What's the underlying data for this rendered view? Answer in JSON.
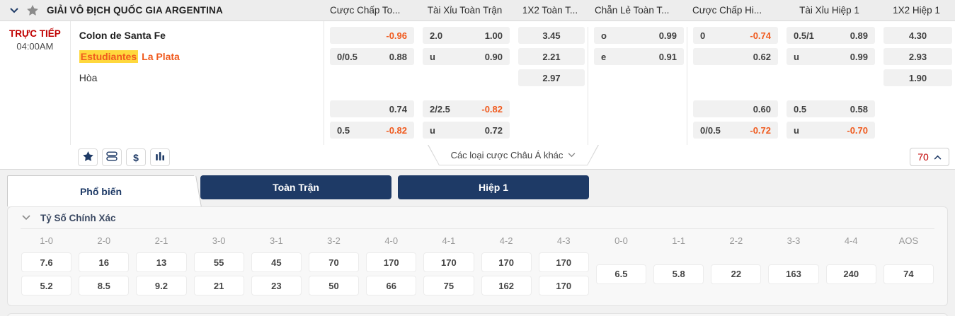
{
  "colors": {
    "accent_orange": "#f05a1e",
    "navy": "#1e3a66",
    "live_red": "#c00000",
    "highlight_yellow": "#ffd83d",
    "cell_gray": "#f1f1f1"
  },
  "league_bar": {
    "title": "GIẢI VÔ ĐỊCH QUỐC GIA ARGENTINA",
    "column_headers": [
      "Cược Chấp To...",
      "Tài Xỉu Toàn Trận",
      "1X2 Toàn T...",
      "Chẵn Lẻ Toàn T...",
      "Cược Chấp Hi...",
      "Tài Xỉu Hiệp 1",
      "1X2 Hiệp 1"
    ]
  },
  "match": {
    "live_label": "TRỰC TIẾP",
    "time": "04:00AM",
    "home_team": "Colon de Santa Fe",
    "away_team_highlighted": "Estudiantes",
    "away_team_rest": "La Plata",
    "draw_label": "Hòa"
  },
  "odds": {
    "ft_handicap": {
      "b1": [
        {
          "line": "",
          "value": "-0.96"
        },
        {
          "line": "0/0.5",
          "value": "0.88"
        }
      ],
      "b2": [
        {
          "line": "",
          "value": "0.74"
        },
        {
          "line": "0.5",
          "value": "-0.82"
        }
      ]
    },
    "ft_ou": {
      "b1": [
        {
          "line": "2.0",
          "value": "1.00"
        },
        {
          "line": "u",
          "value": "0.90"
        }
      ],
      "b2": [
        {
          "line": "2/2.5",
          "value": "-0.82"
        },
        {
          "line": "u",
          "value": "0.72"
        }
      ]
    },
    "ft_1x2": [
      "3.45",
      "2.21",
      "2.97"
    ],
    "ft_oddeven": [
      {
        "line": "o",
        "value": "0.99"
      },
      {
        "line": "e",
        "value": "0.91"
      }
    ],
    "h1_handicap": {
      "b1": [
        {
          "line": "0",
          "value": "-0.74"
        },
        {
          "line": "",
          "value": "0.62"
        }
      ],
      "b2": [
        {
          "line": "",
          "value": "0.60"
        },
        {
          "line": "0/0.5",
          "value": "-0.72"
        }
      ]
    },
    "h1_ou": {
      "b1": [
        {
          "line": "0.5/1",
          "value": "0.89"
        },
        {
          "line": "u",
          "value": "0.99"
        }
      ],
      "b2": [
        {
          "line": "0.5",
          "value": "0.58"
        },
        {
          "line": "u",
          "value": "-0.70"
        }
      ]
    },
    "h1_1x2": [
      "4.30",
      "2.93",
      "1.90"
    ]
  },
  "toolbar": {
    "icons": [
      "star-icon",
      "layers-icon",
      "dollar-icon",
      "bar-chart-icon"
    ],
    "more_bets_label": "Các loại cược Châu Á khác",
    "market_count": "70"
  },
  "tabs": [
    {
      "label": "Phổ biến",
      "active": true
    },
    {
      "label": "Toàn Trận",
      "active": false
    },
    {
      "label": "Hiệp 1",
      "active": false
    }
  ],
  "score_section": {
    "title": "Tỷ Số Chính Xác",
    "columns": [
      {
        "label": "1-0",
        "odds": [
          "7.6",
          "5.2"
        ]
      },
      {
        "label": "2-0",
        "odds": [
          "16",
          "8.5"
        ]
      },
      {
        "label": "2-1",
        "odds": [
          "13",
          "9.2"
        ]
      },
      {
        "label": "3-0",
        "odds": [
          "55",
          "21"
        ]
      },
      {
        "label": "3-1",
        "odds": [
          "45",
          "23"
        ]
      },
      {
        "label": "3-2",
        "odds": [
          "70",
          "50"
        ]
      },
      {
        "label": "4-0",
        "odds": [
          "170",
          "66"
        ]
      },
      {
        "label": "4-1",
        "odds": [
          "170",
          "75"
        ]
      },
      {
        "label": "4-2",
        "odds": [
          "170",
          "162"
        ]
      },
      {
        "label": "4-3",
        "odds": [
          "170",
          "170"
        ]
      },
      {
        "label": "0-0",
        "odds": [
          "6.5"
        ]
      },
      {
        "label": "1-1",
        "odds": [
          "5.8"
        ]
      },
      {
        "label": "2-2",
        "odds": [
          "22"
        ]
      },
      {
        "label": "3-3",
        "odds": [
          "163"
        ]
      },
      {
        "label": "4-4",
        "odds": [
          "240"
        ]
      },
      {
        "label": "AOS",
        "odds": [
          "74"
        ]
      }
    ]
  }
}
